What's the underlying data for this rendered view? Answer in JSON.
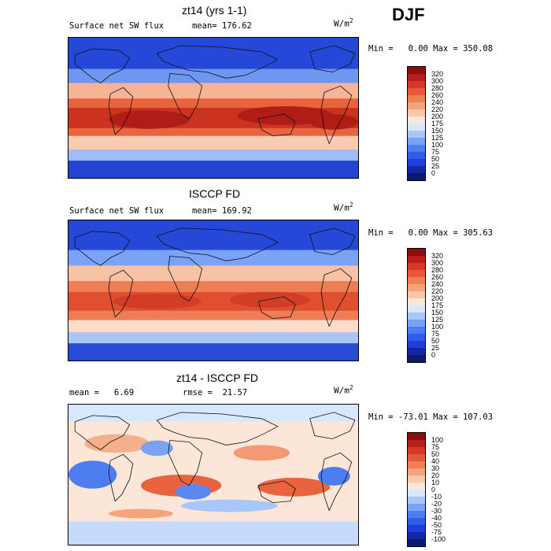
{
  "season": "DJF",
  "panels": [
    {
      "title": "zt14 (yrs 1-1)",
      "left_text": "Surface net SW flux",
      "stat_text": "mean= 176.62",
      "units_base": "W/m",
      "units_exp": "2",
      "minmax": "Min =   0.00 Max = 350.08",
      "colorbar": {
        "colors": [
          "#0a1a6e",
          "#1426a6",
          "#1f3fd6",
          "#2f5ce8",
          "#4d7df0",
          "#7aa2f5",
          "#a8c6fa",
          "#d7e8fc",
          "#fbe6d8",
          "#f9c7a9",
          "#f4a37c",
          "#ef7f56",
          "#e6593a",
          "#d6382a",
          "#b81e1a",
          "#8c0f0e"
        ],
        "labels": [
          "0",
          "25",
          "50",
          "75",
          "100",
          "125",
          "150",
          "175",
          "200",
          "220",
          "240",
          "260",
          "280",
          "300",
          "320"
        ]
      }
    },
    {
      "title": "ISCCP FD",
      "left_text": "Surface net SW flux",
      "stat_text": "mean= 169.92",
      "units_base": "W/m",
      "units_exp": "2",
      "minmax": "Min =   0.00 Max = 305.63",
      "colorbar": {
        "colors": [
          "#0a1a6e",
          "#1426a6",
          "#1f3fd6",
          "#2f5ce8",
          "#4d7df0",
          "#7aa2f5",
          "#a8c6fa",
          "#d7e8fc",
          "#fbe6d8",
          "#f9c7a9",
          "#f4a37c",
          "#ef7f56",
          "#e6593a",
          "#d6382a",
          "#b81e1a",
          "#8c0f0e"
        ],
        "labels": [
          "0",
          "25",
          "50",
          "75",
          "100",
          "125",
          "150",
          "175",
          "200",
          "220",
          "240",
          "260",
          "280",
          "300",
          "320"
        ]
      }
    },
    {
      "title": "zt14 - ISCCP FD",
      "left_text": "mean =   6.69",
      "stat_text": "rmse =  21.57",
      "units_base": "W/m",
      "units_exp": "2",
      "minmax": "Min = -73.01 Max = 107.03",
      "colorbar": {
        "colors": [
          "#0a1a6e",
          "#1426a6",
          "#1f3fd6",
          "#2f5ce8",
          "#4d7df0",
          "#7aa2f5",
          "#a8c6fa",
          "#d7e8fc",
          "#fbe6d8",
          "#f9c7a9",
          "#f4a37c",
          "#ef7f56",
          "#e6593a",
          "#d6382a",
          "#b81e1a",
          "#8c0f0e"
        ],
        "labels": [
          "-100",
          "-75",
          "-50",
          "-40",
          "-30",
          "-20",
          "-10",
          "0",
          "10",
          "20",
          "30",
          "40",
          "50",
          "75",
          "100"
        ]
      }
    }
  ]
}
